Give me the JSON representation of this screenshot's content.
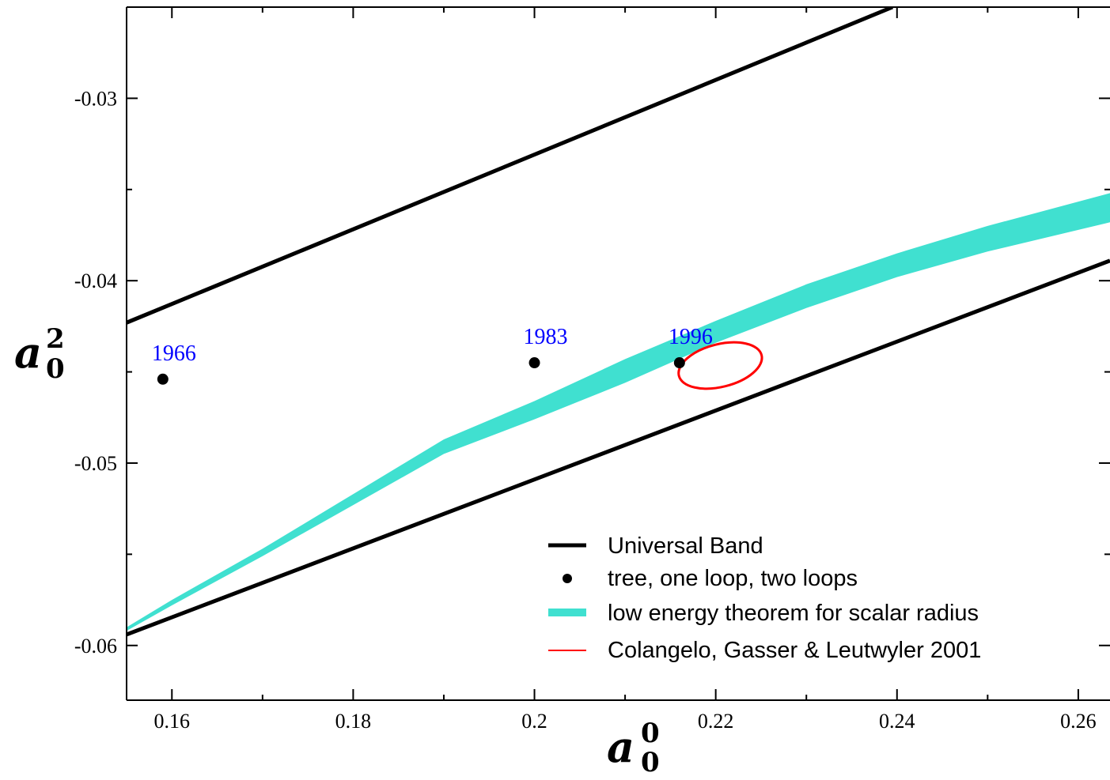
{
  "chart_data": {
    "type": "line",
    "title": "",
    "xlabel": {
      "base": "a",
      "sub": "0",
      "sup": "0"
    },
    "ylabel": {
      "base": "a",
      "sub": "0",
      "sup": "2"
    },
    "xlim": [
      0.155,
      0.2635
    ],
    "ylim": [
      -0.063,
      -0.025
    ],
    "x_ticks": [
      0.16,
      0.18,
      0.2,
      0.22,
      0.24,
      0.26
    ],
    "x_tick_labels": [
      "0.16",
      "0.18",
      "0.2",
      "0.22",
      "0.24",
      "0.26"
    ],
    "y_ticks": [
      -0.03,
      -0.04,
      -0.05,
      -0.06
    ],
    "y_tick_labels": [
      "-0.03",
      "-0.04",
      "-0.05",
      "-0.06"
    ],
    "grid": false,
    "legend_position": "bottom-right",
    "colors": {
      "band": "#40E0D0",
      "ellipse": "#FF0000",
      "label": "#0000FF",
      "line": "#000000"
    },
    "series": [
      {
        "name": "Universal Band",
        "kind": "line",
        "segments": [
          {
            "x": [
              0.155,
              0.2395
            ],
            "y": [
              -0.0423,
              -0.025
            ]
          },
          {
            "x": [
              0.155,
              0.2635
            ],
            "y": [
              -0.0594,
              -0.0389
            ]
          }
        ]
      },
      {
        "name": "tree, one loop, two loops",
        "kind": "points",
        "points": [
          {
            "x": 0.159,
            "y": -0.0454,
            "label": "1966"
          },
          {
            "x": 0.2,
            "y": -0.0445,
            "label": "1983"
          },
          {
            "x": 0.216,
            "y": -0.0445,
            "label": "1996"
          }
        ]
      },
      {
        "name": "low energy theorem for scalar radius",
        "kind": "band",
        "x": [
          0.155,
          0.16,
          0.17,
          0.18,
          0.19,
          0.2,
          0.21,
          0.22,
          0.23,
          0.24,
          0.25,
          0.2635
        ],
        "y_upper": [
          -0.059,
          -0.0575,
          -0.0547,
          -0.0517,
          -0.0487,
          -0.0466,
          -0.0443,
          -0.0422,
          -0.0402,
          -0.0385,
          -0.037,
          -0.0352
        ],
        "y_lower": [
          -0.0592,
          -0.0578,
          -0.0551,
          -0.0523,
          -0.0495,
          -0.0476,
          -0.0456,
          -0.0434,
          -0.0415,
          -0.0398,
          -0.0384,
          -0.0368
        ]
      },
      {
        "name": "Colangelo, Gasser & Leutwyler 2001",
        "kind": "ellipse",
        "center": {
          "x": 0.2205,
          "y": -0.04465
        },
        "radius_x": 0.0047,
        "radius_y": 0.00045,
        "angle_deg": -14
      }
    ]
  }
}
